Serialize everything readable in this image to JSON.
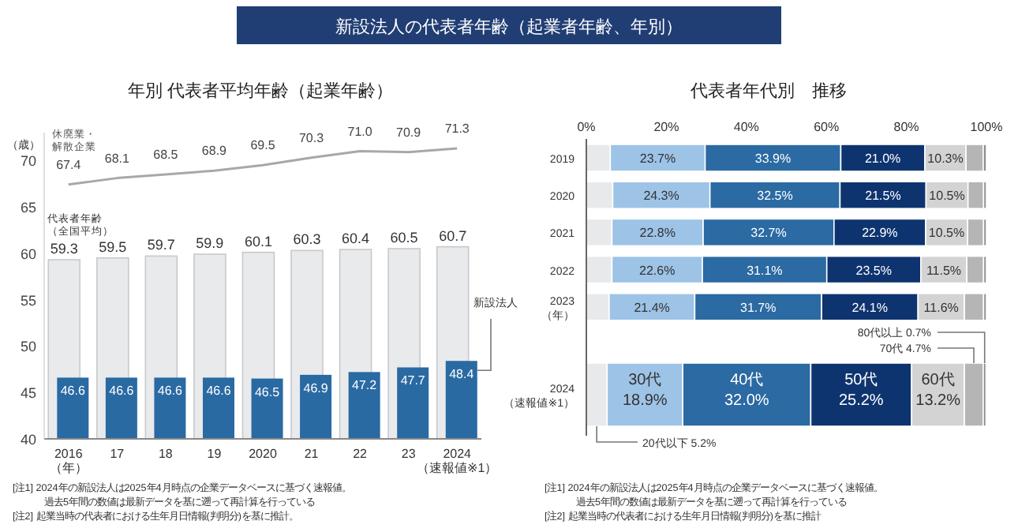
{
  "chart_data": [
    {
      "type": "other",
      "title": "新設法人の代表者年齢（起業者年齢、年別）"
    },
    {
      "type": "bar",
      "title": "年別 代表者平均年齢（起業年齢）",
      "ylabel": "（歳）",
      "categories": [
        "2016\n（年）",
        "17",
        "18",
        "19",
        "2020",
        "21",
        "22",
        "23",
        "2024\n（速報値※1）"
      ],
      "series": [
        {
          "name": "代表者年齢（全国平均）",
          "type": "bar",
          "color": "#e9eaec",
          "values": [
            59.3,
            59.5,
            59.7,
            59.9,
            60.1,
            60.3,
            60.4,
            60.5,
            60.7
          ]
        },
        {
          "name": "新設法人",
          "type": "bar",
          "color": "#2a6aa3",
          "values": [
            46.6,
            46.6,
            46.6,
            46.6,
            46.5,
            46.9,
            47.2,
            47.7,
            48.4
          ]
        },
        {
          "name": "休廃業・解散企業",
          "type": "line",
          "color": "#a8a8a8",
          "values": [
            67.4,
            68.1,
            68.5,
            68.9,
            69.5,
            70.3,
            71.0,
            70.9,
            71.3
          ],
          "value_labels": [
            "67.4",
            "68.1",
            "68.5",
            "68.9",
            "69.5",
            "70.3",
            "71.0",
            "70.9",
            "71.3"
          ]
        }
      ],
      "ylim": [
        40,
        73
      ],
      "yticks": [
        40,
        45,
        50,
        55,
        60,
        65,
        70
      ],
      "data_labels": true,
      "annotations": [
        "[注1] 2024年の新設法人は2025年4月時点の企業データベースに基づく速報値。",
        "過去5年間の数値は最新データを基に遡って再計算を行っている",
        "[注2] 起業当時の代表者における生年月日情報(判明分)を基に推計。"
      ]
    },
    {
      "type": "bar",
      "orientation": "horizontal",
      "stacked": true,
      "title": "代表者年代別　推移",
      "categories": [
        "2019",
        "2020",
        "2021",
        "2022",
        "2023\n（年）",
        "2024\n（速報値※1）"
      ],
      "series": [
        {
          "name": "20代以下",
          "color": "#e8e9eb",
          "values": [
            6.0,
            6.6,
            6.4,
            6.4,
            5.7,
            5.2
          ],
          "value_labels": [
            null,
            null,
            null,
            null,
            null,
            "5.2%"
          ]
        },
        {
          "name": "30代",
          "color": "#9dc3e6",
          "values": [
            23.7,
            24.3,
            22.8,
            22.6,
            21.4,
            18.9
          ],
          "value_labels": [
            "23.7%",
            "24.3%",
            "22.8%",
            "22.6%",
            "21.4%",
            "18.9%"
          ]
        },
        {
          "name": "40代",
          "color": "#2b6aa2",
          "values": [
            33.9,
            32.5,
            32.7,
            31.1,
            31.7,
            32.0
          ],
          "value_labels": [
            "33.9%",
            "32.5%",
            "32.7%",
            "31.1%",
            "31.7%",
            "32.0%"
          ]
        },
        {
          "name": "50代",
          "color": "#0e3470",
          "values": [
            21.0,
            21.5,
            22.9,
            23.5,
            24.1,
            25.2
          ],
          "value_labels": [
            "21.0%",
            "21.5%",
            "22.9%",
            "23.5%",
            "24.1%",
            "25.2%"
          ]
        },
        {
          "name": "60代",
          "color": "#d3d3d3",
          "values": [
            10.3,
            10.5,
            10.5,
            11.5,
            11.6,
            13.2
          ],
          "value_labels": [
            "10.3%",
            "10.5%",
            "10.5%",
            "11.5%",
            "11.6%",
            "13.2%"
          ]
        },
        {
          "name": "70代",
          "color": "#b5b5b5",
          "values": [
            4.3,
            3.9,
            4.0,
            4.2,
            4.8,
            4.7
          ],
          "value_labels": [
            null,
            null,
            null,
            null,
            null,
            "4.7%"
          ]
        },
        {
          "name": "80代以上",
          "color": "#8f8f8f",
          "values": [
            0.8,
            0.7,
            0.7,
            0.7,
            0.7,
            0.7
          ],
          "value_labels": [
            null,
            null,
            null,
            null,
            null,
            "0.7%"
          ]
        }
      ],
      "xlim": [
        0,
        100
      ],
      "xticks": [
        {
          "value": 0,
          "label": "0%"
        },
        {
          "value": 20,
          "label": "20%"
        },
        {
          "value": 40,
          "label": "40%"
        },
        {
          "value": 60,
          "label": "60%"
        },
        {
          "value": 80,
          "label": "80%"
        },
        {
          "value": 100,
          "label": "100%"
        }
      ],
      "annotations": [
        "[注1] 2024年の新設法人は2025年4月時点の企業データベースに基づく速報値。",
        "過去5年間の数値は最新データを基に遡って再計算を行っている",
        "[注2] 起業当時の代表者における生年月日情報(判明分)を基に推計"
      ]
    }
  ]
}
